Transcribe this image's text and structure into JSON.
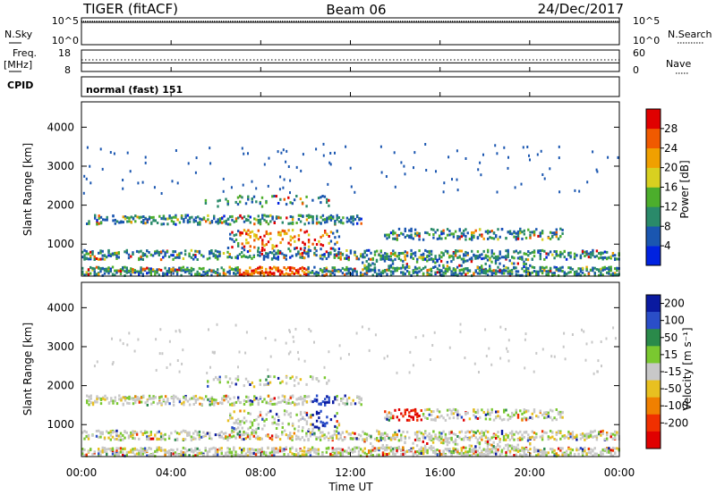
{
  "header": {
    "radar": "TIGER (fitACF)",
    "beam": "Beam 06",
    "date": "24/Dec/2017"
  },
  "side_labels": {
    "nsky": "N.Sky",
    "nsearch": "N.Search",
    "freq_line1": "Freq.",
    "freq_line2": "[MHz]",
    "nave": "Nave",
    "cpid": "CPID"
  },
  "cpid_text": "normal (fast) 151",
  "chart_data": [
    {
      "type": "line",
      "panel": "noise",
      "left_ticks": [
        "10^5",
        "10^0"
      ],
      "right_ticks": [
        "10^5",
        "10^0"
      ]
    },
    {
      "type": "line",
      "panel": "frequency",
      "left_ticks": [
        "18",
        "8"
      ],
      "right_ticks": [
        "60",
        "0"
      ],
      "freq_level_mhz": 12
    },
    {
      "type": "heatmap",
      "panel": "power",
      "ylabel": "Slant Range [km]",
      "y_ticks": [
        1000,
        2000,
        3000,
        4000
      ],
      "ylim": [
        180,
        4650
      ],
      "xlim_hours": [
        0,
        24
      ],
      "colorbar": {
        "label": "Power [dB]",
        "ticks": [
          4,
          8,
          12,
          16,
          20,
          24,
          28
        ],
        "colors": [
          "#0022e0",
          "#1a56b0",
          "#2a8a6a",
          "#4cae2c",
          "#d8d020",
          "#f0a000",
          "#f05a00",
          "#e00000"
        ]
      }
    },
    {
      "type": "heatmap",
      "panel": "velocity",
      "ylabel": "Slant Range [km]",
      "y_ticks": [
        1000,
        2000,
        3000,
        4000
      ],
      "ylim": [
        180,
        4650
      ],
      "xlim_hours": [
        0,
        24
      ],
      "xlabel": "Time UT",
      "x_ticks": [
        "00:00",
        "04:00",
        "08:00",
        "12:00",
        "16:00",
        "20:00",
        "00:00"
      ],
      "colorbar": {
        "label": "Velocity [m s⁻¹]",
        "ticks": [
          "200",
          "100",
          "50",
          "15",
          "-15",
          "-50",
          "-100",
          "-200"
        ],
        "colors": [
          "#0a1aa0",
          "#2a4ec8",
          "#2a8a4a",
          "#7ac830",
          "#c8c8c8",
          "#e8c020",
          "#f08000",
          "#f03000",
          "#e00000"
        ]
      }
    }
  ]
}
